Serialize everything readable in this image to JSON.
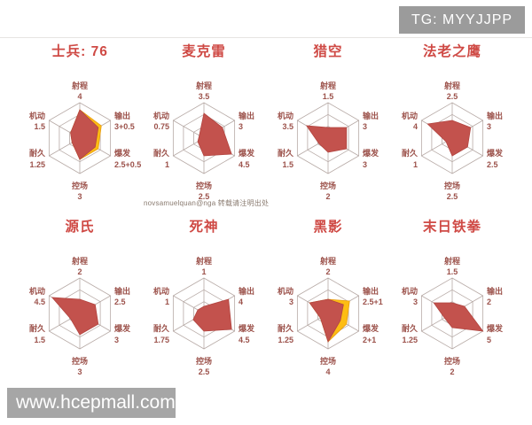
{
  "badge": {
    "text": "TG: MYYJJPP"
  },
  "credit": "novsamuelquan@nga 转载请注明出处",
  "watermark": "www.hcepmall.com",
  "colors": {
    "title_red": "#cf4a45",
    "label_red": "#9c524b",
    "fill_red": "#c3524d",
    "fill_yellow": "#fdbd13",
    "grid": "#b7aaa6",
    "badge_bg": "#9b9b9b",
    "watermark_bg": "#9e9e9e"
  },
  "axes": [
    "射程",
    "输出",
    "爆发",
    "控场",
    "耐久",
    "机动"
  ],
  "chart_data": [
    {
      "type": "radar",
      "title": "士兵: 76",
      "max": 5,
      "categories": [
        "射程",
        "输出",
        "爆发",
        "控场",
        "耐久",
        "机动"
      ],
      "value_labels": [
        "4",
        "3+0.5",
        "2.5+0.5",
        "3",
        "1.25",
        "1.5"
      ],
      "values": [
        4,
        3,
        2.5,
        3,
        1.25,
        1.5
      ],
      "bonus_values": [
        4,
        3.5,
        3,
        3,
        1.25,
        1.5
      ]
    },
    {
      "type": "radar",
      "title": "麦克雷",
      "max": 5,
      "categories": [
        "射程",
        "输出",
        "爆发",
        "控场",
        "耐久",
        "机动"
      ],
      "value_labels": [
        "3.5",
        "3",
        "4.5",
        "2.5",
        "1",
        "0.75"
      ],
      "values": [
        3.5,
        3,
        4.5,
        2.5,
        1,
        0.75
      ],
      "bonus_values": null
    },
    {
      "type": "radar",
      "title": "猎空",
      "max": 5,
      "categories": [
        "射程",
        "输出",
        "爆发",
        "控场",
        "耐久",
        "机动"
      ],
      "value_labels": [
        "1.5",
        "3",
        "3",
        "2",
        "1.5",
        "3.5"
      ],
      "values": [
        1.5,
        3,
        3,
        2,
        1.5,
        3.5
      ],
      "bonus_values": null
    },
    {
      "type": "radar",
      "title": "法老之鹰",
      "max": 5,
      "categories": [
        "射程",
        "输出",
        "爆发",
        "控场",
        "耐久",
        "机动"
      ],
      "value_labels": [
        "2.5",
        "3",
        "2.5",
        "2.5",
        "1",
        "4"
      ],
      "values": [
        2.5,
        3,
        2.5,
        2.5,
        1,
        4
      ],
      "bonus_values": null
    },
    {
      "type": "radar",
      "title": "源氏",
      "max": 5,
      "categories": [
        "射程",
        "输出",
        "爆发",
        "控场",
        "耐久",
        "机动"
      ],
      "value_labels": [
        "2",
        "2.5",
        "3",
        "3",
        "1.5",
        "4.5"
      ],
      "values": [
        2,
        2.5,
        3,
        3,
        1.5,
        4.5
      ],
      "bonus_values": null
    },
    {
      "type": "radar",
      "title": "死神",
      "max": 5,
      "categories": [
        "射程",
        "输出",
        "爆发",
        "控场",
        "耐久",
        "机动"
      ],
      "value_labels": [
        "1",
        "4",
        "4.5",
        "2.5",
        "1.75",
        "1"
      ],
      "values": [
        1,
        4,
        4.5,
        2.5,
        1.75,
        1
      ],
      "bonus_values": null
    },
    {
      "type": "radar",
      "title": "黑影",
      "max": 5,
      "categories": [
        "射程",
        "输出",
        "爆发",
        "控场",
        "耐久",
        "机动"
      ],
      "value_labels": [
        "2",
        "2.5+1",
        "2+1",
        "4",
        "1.25",
        "3"
      ],
      "values": [
        2,
        2.5,
        2,
        4,
        1.25,
        3
      ],
      "bonus_values": [
        2,
        3.5,
        3,
        4,
        1.25,
        3
      ]
    },
    {
      "type": "radar",
      "title": "末日铁拳",
      "max": 5,
      "categories": [
        "射程",
        "输出",
        "爆发",
        "控场",
        "耐久",
        "机动"
      ],
      "value_labels": [
        "1.5",
        "2",
        "5",
        "2",
        "1.25",
        "3"
      ],
      "values": [
        1.5,
        2,
        5,
        2,
        1.25,
        3
      ],
      "bonus_values": null
    }
  ]
}
